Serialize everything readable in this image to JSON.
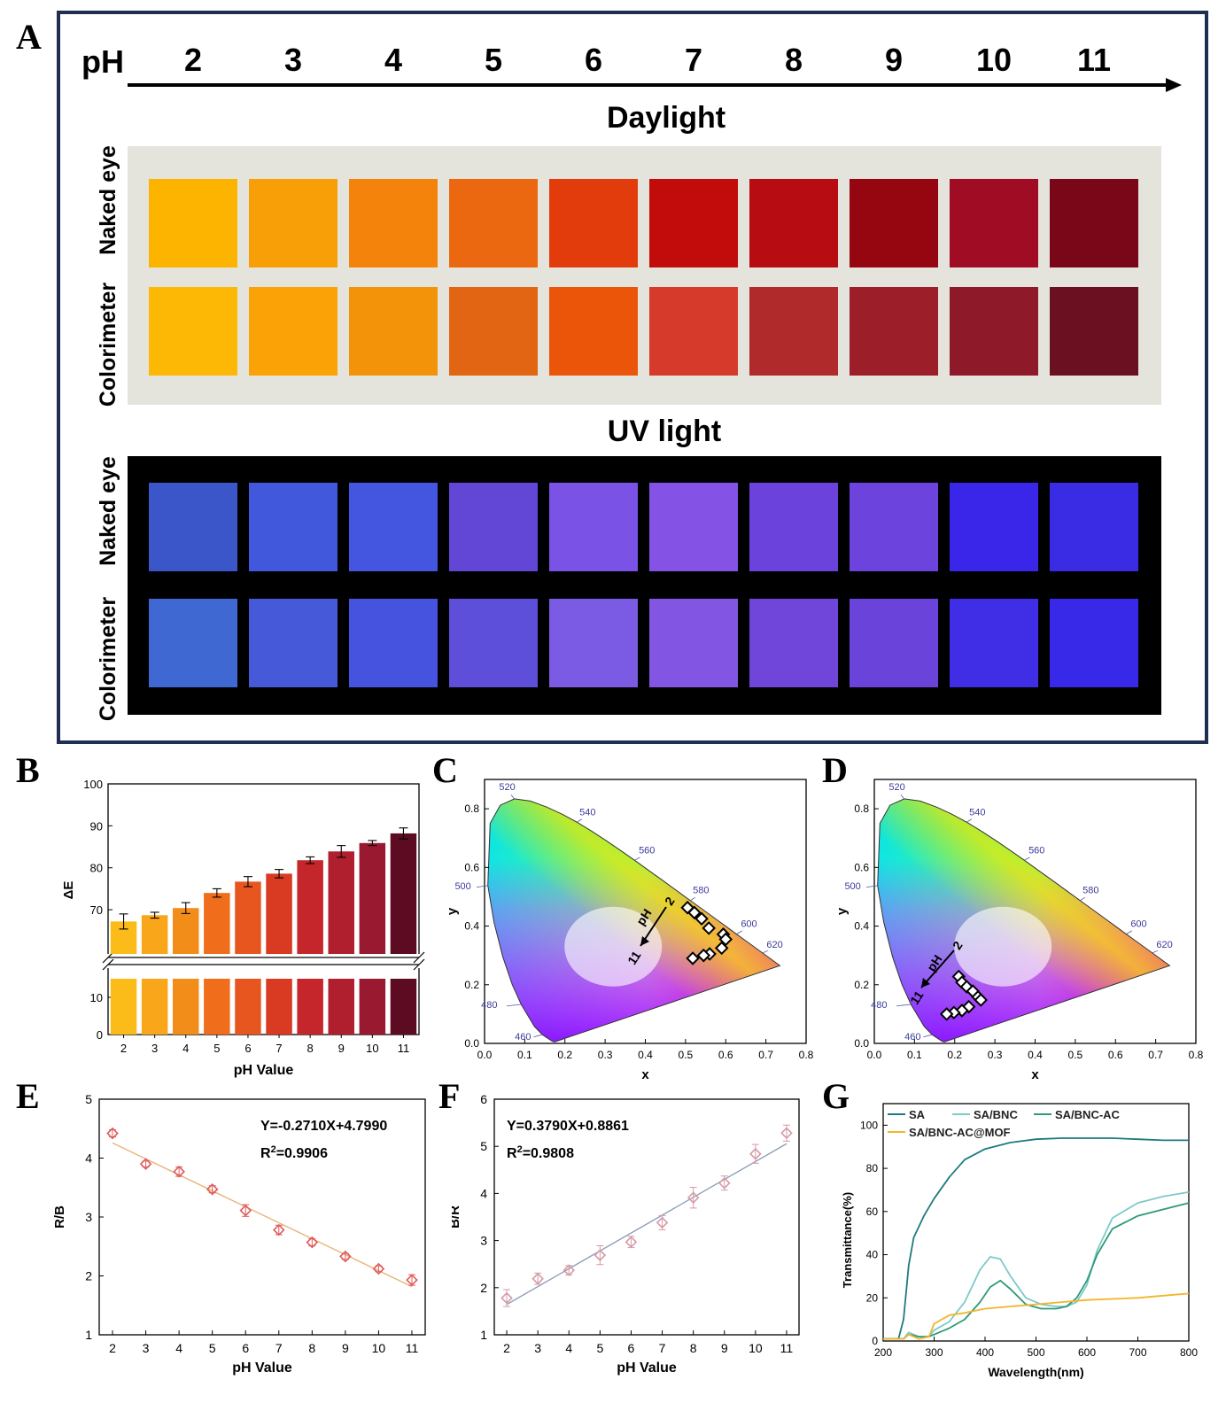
{
  "panels": {
    "A": "A",
    "B": "B",
    "C": "C",
    "D": "D",
    "E": "E",
    "F": "F",
    "G": "G"
  },
  "panelA": {
    "ph_label": "pH",
    "ph_values": [
      "2",
      "3",
      "4",
      "5",
      "6",
      "7",
      "8",
      "9",
      "10",
      "11"
    ],
    "daylight_title": "Daylight",
    "uv_title": "UV light",
    "row_labels": {
      "naked_eye": "Naked eye",
      "colorimeter": "Colorimeter"
    },
    "daylight_naked": [
      "#fdb400",
      "#f89e07",
      "#f4830c",
      "#eb6810",
      "#e23c0c",
      "#c20c0c",
      "#b60c12",
      "#950610",
      "#a00c23",
      "#7a0717"
    ],
    "daylight_colorimeter": [
      "#fdb705",
      "#fba206",
      "#f29309",
      "#e16512",
      "#ea5509",
      "#d53a2b",
      "#b0292b",
      "#9c1e28",
      "#8e1928",
      "#6b1020"
    ],
    "uv_naked": [
      "#3a56c9",
      "#4157dc",
      "#4455e0",
      "#6246d6",
      "#7a52e6",
      "#8452e4",
      "#6c42dd",
      "#6c43dc",
      "#3a26e8",
      "#3a2ce4"
    ],
    "uv_colorimeter": [
      "#3f68d3",
      "#4559d9",
      "#4653de",
      "#5d4fd9",
      "#7b5be3",
      "#8256e3",
      "#7046da",
      "#6a44da",
      "#3f2ee6",
      "#3828e8"
    ],
    "colors": {
      "frame": "#1f2f4f",
      "daylight_bg": "#e4e4dc",
      "uv_bg": "#000000"
    }
  },
  "chart_data": [
    {
      "panel": "B",
      "type": "bar",
      "categories": [
        "2",
        "3",
        "4",
        "5",
        "6",
        "7",
        "8",
        "9",
        "10",
        "11"
      ],
      "values": [
        67.2,
        68.7,
        70.4,
        74.0,
        76.7,
        78.6,
        81.8,
        83.9,
        85.9,
        88.2
      ],
      "errors": [
        1.8,
        0.7,
        1.3,
        1.0,
        1.2,
        1.0,
        0.8,
        1.4,
        0.6,
        1.3
      ],
      "bar_colors": [
        "#fbbc19",
        "#f9a61a",
        "#f38d1a",
        "#ef6d1b",
        "#e85620",
        "#d93a22",
        "#c4262b",
        "#b01f2e",
        "#991a30",
        "#5c0b22"
      ],
      "xlabel": "pH Value",
      "ylabel": "ΔE",
      "upper_ticks": [
        "70",
        "80",
        "90",
        "100"
      ],
      "lower_ticks": [
        "0",
        "10"
      ],
      "ylim": [
        0,
        100
      ],
      "axis_break": [
        15,
        62
      ]
    },
    {
      "panel": "C",
      "type": "scatter",
      "x": [
        0.505,
        0.522,
        0.54,
        0.558,
        0.594,
        0.6,
        0.59,
        0.56,
        0.545,
        0.518
      ],
      "y": [
        0.463,
        0.446,
        0.425,
        0.393,
        0.372,
        0.355,
        0.325,
        0.305,
        0.3,
        0.29
      ],
      "xlabel": "x",
      "ylabel": "y",
      "xticks": [
        "0.0",
        "0.1",
        "0.2",
        "0.3",
        "0.4",
        "0.5",
        "0.6",
        "0.7",
        "0.8"
      ],
      "yticks": [
        "0.0",
        "0.2",
        "0.4",
        "0.6",
        "0.8"
      ],
      "wavelength_labels": [
        "460",
        "480",
        "500",
        "520",
        "540",
        "560",
        "580",
        "600",
        "620"
      ],
      "annotation": {
        "label": "pH",
        "start": "2",
        "end": "11"
      },
      "xlim": [
        0,
        0.8
      ],
      "ylim": [
        0,
        0.9
      ]
    },
    {
      "panel": "D",
      "type": "scatter",
      "x": [
        0.21,
        0.218,
        0.23,
        0.245,
        0.258,
        0.235,
        0.218,
        0.198,
        0.18,
        0.265
      ],
      "y": [
        0.228,
        0.208,
        0.193,
        0.178,
        0.158,
        0.125,
        0.112,
        0.105,
        0.1,
        0.148
      ],
      "xlabel": "x",
      "ylabel": "y",
      "xticks": [
        "0.0",
        "0.1",
        "0.2",
        "0.3",
        "0.4",
        "0.5",
        "0.6",
        "0.7",
        "0.8"
      ],
      "yticks": [
        "0.0",
        "0.2",
        "0.4",
        "0.6",
        "0.8"
      ],
      "wavelength_labels": [
        "460",
        "480",
        "500",
        "520",
        "540",
        "560",
        "580",
        "600",
        "620"
      ],
      "annotation": {
        "label": "pH",
        "start": "2",
        "end": "11"
      },
      "xlim": [
        0,
        0.8
      ],
      "ylim": [
        0,
        0.9
      ]
    },
    {
      "panel": "E",
      "type": "scatter",
      "x": [
        2,
        3,
        4,
        5,
        6,
        7,
        8,
        9,
        10,
        11
      ],
      "y": [
        4.42,
        3.9,
        3.77,
        3.47,
        3.11,
        2.78,
        2.57,
        2.33,
        2.12,
        1.93
      ],
      "errors": [
        0.06,
        0.05,
        0.08,
        0.06,
        0.1,
        0.08,
        0.06,
        0.05,
        0.05,
        0.09
      ],
      "fit": {
        "slope": -0.271,
        "intercept": 4.799
      },
      "equation": "Y=-0.2710X+4.7990",
      "r2_prefix": "R",
      "r2_sup": "2",
      "r2_value": "=0.9906",
      "xlabel": "pH Value",
      "ylabel": "R/B",
      "xticks": [
        "2",
        "3",
        "4",
        "5",
        "6",
        "7",
        "8",
        "9",
        "10",
        "11"
      ],
      "yticks": [
        "1",
        "2",
        "3",
        "4",
        "5"
      ],
      "ylim": [
        1,
        5
      ],
      "colors": {
        "marker": "#e05a5a",
        "fit_line": "#e8b47a"
      }
    },
    {
      "panel": "F",
      "type": "scatter",
      "x": [
        2,
        3,
        4,
        5,
        6,
        7,
        8,
        9,
        10,
        11
      ],
      "y": [
        1.78,
        2.19,
        2.37,
        2.69,
        2.97,
        3.38,
        3.91,
        4.22,
        4.84,
        5.28
      ],
      "errors": [
        0.18,
        0.12,
        0.1,
        0.2,
        0.12,
        0.15,
        0.22,
        0.15,
        0.2,
        0.17
      ],
      "fit": {
        "slope": 0.379,
        "intercept": 0.8861
      },
      "equation": "Y=0.3790X+0.8861",
      "r2_prefix": "R",
      "r2_sup": "2",
      "r2_value": "=0.9808",
      "xlabel": "pH Value",
      "ylabel": "B/R",
      "xticks": [
        "2",
        "3",
        "4",
        "5",
        "6",
        "7",
        "8",
        "9",
        "10",
        "11"
      ],
      "yticks": [
        "1",
        "2",
        "3",
        "4",
        "5",
        "6"
      ],
      "ylim": [
        1,
        6
      ],
      "colors": {
        "marker": "#d59aa6",
        "fit_line": "#8e9fb8"
      }
    },
    {
      "panel": "G",
      "type": "line",
      "xlabel": "Wavelength(nm)",
      "ylabel": "Transmittance(%)",
      "xticks": [
        "200",
        "300",
        "400",
        "500",
        "600",
        "700",
        "800"
      ],
      "yticks": [
        "0",
        "20",
        "40",
        "60",
        "80",
        "100"
      ],
      "xlim": [
        200,
        800
      ],
      "ylim": [
        0,
        110
      ],
      "legend_position": "top",
      "series": [
        {
          "name": "SA",
          "color": "#1d7a80",
          "x": [
            200,
            230,
            240,
            250,
            260,
            280,
            300,
            330,
            360,
            400,
            450,
            500,
            550,
            600,
            650,
            700,
            750,
            800
          ],
          "y": [
            1,
            1,
            10,
            35,
            48,
            58,
            66,
            76,
            84,
            89,
            92,
            93.5,
            94,
            94,
            94,
            93.5,
            93,
            93
          ]
        },
        {
          "name": "SA/BNC",
          "color": "#7fc9c9",
          "x": [
            200,
            240,
            250,
            270,
            290,
            300,
            330,
            360,
            390,
            410,
            430,
            450,
            480,
            510,
            540,
            560,
            580,
            600,
            620,
            650,
            700,
            750,
            800
          ],
          "y": [
            1,
            1,
            4,
            2,
            2,
            5,
            9,
            18,
            33,
            39,
            38,
            30,
            20,
            17,
            16,
            16,
            18,
            26,
            42,
            57,
            64,
            67,
            69
          ]
        },
        {
          "name": "SA/BNC-AC",
          "color": "#2e9a78",
          "x": [
            200,
            240,
            250,
            270,
            290,
            300,
            330,
            360,
            390,
            410,
            430,
            450,
            480,
            510,
            540,
            560,
            580,
            600,
            620,
            650,
            700,
            750,
            800
          ],
          "y": [
            1,
            1,
            3,
            2,
            2,
            3,
            6,
            10,
            18,
            25,
            28,
            24,
            17,
            15,
            15,
            16,
            20,
            28,
            40,
            52,
            58,
            61,
            64
          ]
        },
        {
          "name": "SA/BNC-AC@MOF",
          "color": "#f2b52a",
          "x": [
            200,
            240,
            250,
            270,
            290,
            300,
            330,
            360,
            400,
            450,
            500,
            550,
            600,
            650,
            700,
            750,
            800
          ],
          "y": [
            1,
            1,
            3,
            1,
            2,
            8,
            12,
            13,
            15,
            16,
            17,
            18,
            19,
            19.5,
            20,
            21,
            22
          ]
        }
      ]
    }
  ]
}
